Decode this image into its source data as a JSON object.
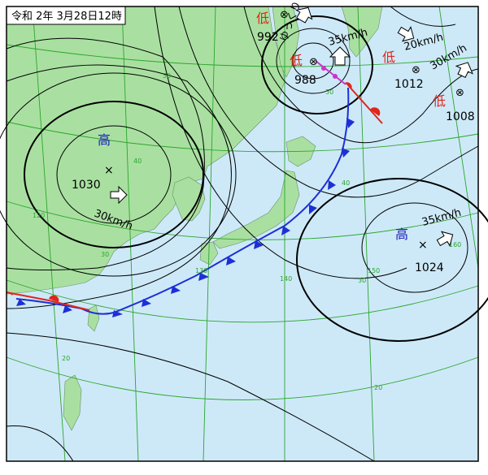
{
  "title": "令和 2年 3月28日12時",
  "colors": {
    "sea": "#cde9f8",
    "land": "#a9e0a1",
    "graticule": "#2ca52c",
    "isobar": "#000000",
    "cold_front": "#1d2fd6",
    "warm_front": "#e0261c",
    "occluded_front": "#cc33cc",
    "low_label": "#e0261c",
    "high_label": "#1b1bbd"
  },
  "systems": {
    "high_west": {
      "label": "高",
      "pressure": "1030",
      "speed": "30km/h"
    },
    "high_east": {
      "label": "高",
      "pressure": "1024",
      "speed": "35km/h"
    },
    "low_north": {
      "label": "低",
      "pressure": "992",
      "movement": "ゆっくり"
    },
    "low_center": {
      "label": "低",
      "pressure": "988",
      "speed": "35km/h"
    },
    "low_ne1": {
      "label": "低",
      "pressure": "1012",
      "speed": "20km/h"
    },
    "low_ne2": {
      "label": "低",
      "pressure": "1008",
      "speed": "30km/h"
    }
  },
  "graticule_labels": [
    "50",
    "40",
    "30",
    "20",
    "120",
    "130",
    "140",
    "150",
    "160",
    "50",
    "40",
    "30",
    "20"
  ],
  "symbols": {
    "cross": "×",
    "center_x": "⊗"
  }
}
